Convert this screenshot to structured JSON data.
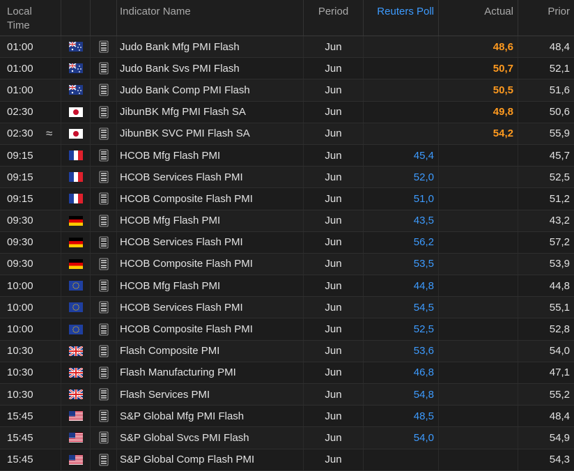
{
  "table": {
    "header": [
      "Local Time",
      "Indicator Name",
      "Period",
      "Reuters Poll",
      "Actual",
      "Prior"
    ],
    "rows": [
      {
        "time": "01:00",
        "name": "Judo Bank Mfg PMI Flash",
        "period": "Jun",
        "actual": "48,6",
        "prior": "48,4"
      },
      {
        "time": "01:00",
        "name": "Judo Bank Svs PMI Flash",
        "period": "Jun",
        "actual": "50,7",
        "prior": "52,1"
      },
      {
        "time": "01:00",
        "name": "Judo Bank Comp PMI Flash",
        "period": "Jun",
        "actual": "50,5",
        "prior": "51,6"
      },
      {
        "time": "02:30",
        "name": "JibunBK Mfg PMI Flash SA",
        "period": "Jun",
        "actual": "49,8",
        "prior": "50,6"
      },
      {
        "time": "02:30",
        "marker": "≈",
        "name": "JibunBK SVC PMI Flash SA",
        "period": "Jun",
        "actual": "54,2",
        "prior": "55,9"
      },
      {
        "time": "09:15",
        "name": "HCOB Mfg Flash PMI",
        "period": "Jun",
        "poll": "45,4",
        "prior": "45,7"
      },
      {
        "time": "09:15",
        "name": "HCOB Services Flash PMI",
        "period": "Jun",
        "poll": "52,0",
        "prior": "52,5"
      },
      {
        "time": "09:15",
        "name": "HCOB Composite Flash PMI",
        "period": "Jun",
        "poll": "51,0",
        "prior": "51,2"
      },
      {
        "time": "09:30",
        "name": "HCOB Mfg Flash PMI",
        "period": "Jun",
        "poll": "43,5",
        "prior": "43,2"
      },
      {
        "time": "09:30",
        "name": "HCOB Services Flash PMI",
        "period": "Jun",
        "poll": "56,2",
        "prior": "57,2"
      },
      {
        "time": "09:30",
        "name": "HCOB Composite Flash PMI",
        "period": "Jun",
        "poll": "53,5",
        "prior": "53,9"
      },
      {
        "time": "10:00",
        "name": "HCOB Mfg Flash PMI",
        "period": "Jun",
        "poll": "44,8",
        "prior": "44,8"
      },
      {
        "time": "10:00",
        "name": "HCOB Services Flash PMI",
        "period": "Jun",
        "poll": "54,5",
        "prior": "55,1"
      },
      {
        "time": "10:00",
        "name": "HCOB Composite Flash PMI",
        "period": "Jun",
        "poll": "52,5",
        "prior": "52,8"
      },
      {
        "time": "10:30",
        "name": "Flash Composite PMI",
        "period": "Jun",
        "poll": "53,6",
        "prior": "54,0"
      },
      {
        "time": "10:30",
        "name": "Flash Manufacturing PMI",
        "period": "Jun",
        "poll": "46,8",
        "prior": "47,1"
      },
      {
        "time": "10:30",
        "name": "Flash Services PMI",
        "period": "Jun",
        "poll": "54,8",
        "prior": "55,2"
      },
      {
        "time": "15:45",
        "name": "S&P Global Mfg PMI Flash",
        "period": "Jun",
        "poll": "48,5",
        "prior": "48,4"
      },
      {
        "time": "15:45",
        "name": "S&P Global Svcs PMI Flash",
        "period": "Jun",
        "poll": "54,0",
        "prior": "54,9"
      },
      {
        "time": "15:45",
        "name": "S&P Global Comp Flash PMI",
        "period": "Jun",
        "prior": "54,3"
      }
    ]
  }
}
